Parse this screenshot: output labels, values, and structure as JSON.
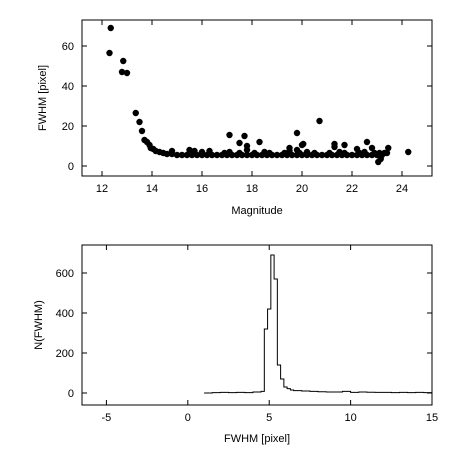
{
  "chart_data": [
    {
      "type": "scatter",
      "title": "",
      "xlabel": "Magnitude",
      "ylabel": "FWHM [pixel]",
      "xlim": [
        11.2,
        25.2
      ],
      "ylim": [
        -5,
        73
      ],
      "xticks": [
        12,
        14,
        16,
        18,
        20,
        22,
        24
      ],
      "xtick_labels": [
        "12",
        "14",
        "16",
        "18",
        "20",
        "22",
        "24"
      ],
      "yticks": [
        0,
        20,
        40,
        60
      ],
      "ytick_labels": [
        "0",
        "20",
        "40",
        "60"
      ],
      "grid": false,
      "marker": "filled-circle",
      "points": [
        [
          12.35,
          69
        ],
        [
          12.3,
          56.5
        ],
        [
          12.85,
          52.5
        ],
        [
          12.8,
          47
        ],
        [
          13.0,
          46.5
        ],
        [
          13.35,
          26.5
        ],
        [
          13.5,
          22
        ],
        [
          13.6,
          17.5
        ],
        [
          13.7,
          13
        ],
        [
          13.8,
          12
        ],
        [
          13.9,
          10.5
        ],
        [
          13.95,
          9
        ],
        [
          14.05,
          8.5
        ],
        [
          14.15,
          7.5
        ],
        [
          14.3,
          7
        ],
        [
          14.45,
          6.5
        ],
        [
          14.6,
          6
        ],
        [
          14.8,
          6
        ],
        [
          15.0,
          5.5
        ],
        [
          15.2,
          5.5
        ],
        [
          15.4,
          5.5
        ],
        [
          15.6,
          5.5
        ],
        [
          15.8,
          5.5
        ],
        [
          16.0,
          5.5
        ],
        [
          16.2,
          5.5
        ],
        [
          16.4,
          5.5
        ],
        [
          16.6,
          5.5
        ],
        [
          16.8,
          5.5
        ],
        [
          17.0,
          5.5
        ],
        [
          17.2,
          5.5
        ],
        [
          17.4,
          5.5
        ],
        [
          17.6,
          5.5
        ],
        [
          17.8,
          5.5
        ],
        [
          18.0,
          5.5
        ],
        [
          18.2,
          5.5
        ],
        [
          18.4,
          5.5
        ],
        [
          18.6,
          5.5
        ],
        [
          18.8,
          5.5
        ],
        [
          19.0,
          5.5
        ],
        [
          19.2,
          5.5
        ],
        [
          19.4,
          5.5
        ],
        [
          19.6,
          5.5
        ],
        [
          19.8,
          5.5
        ],
        [
          20.0,
          5.5
        ],
        [
          20.2,
          5.5
        ],
        [
          20.4,
          5.5
        ],
        [
          20.6,
          5.5
        ],
        [
          20.8,
          5.5
        ],
        [
          21.0,
          5.5
        ],
        [
          21.2,
          5.5
        ],
        [
          21.4,
          5.5
        ],
        [
          21.6,
          5.5
        ],
        [
          21.8,
          5.5
        ],
        [
          22.0,
          5.5
        ],
        [
          22.2,
          5.5
        ],
        [
          22.4,
          5.5
        ],
        [
          22.6,
          5.5
        ],
        [
          22.8,
          5.5
        ],
        [
          23.0,
          5.5
        ],
        [
          23.2,
          5.5
        ],
        [
          14.8,
          7.5
        ],
        [
          15.5,
          6.5
        ],
        [
          16.3,
          6.5
        ],
        [
          16.9,
          6.5
        ],
        [
          17.5,
          6.5
        ],
        [
          18.1,
          6.5
        ],
        [
          18.7,
          6.5
        ],
        [
          19.3,
          6.5
        ],
        [
          19.9,
          6.5
        ],
        [
          20.5,
          6.5
        ],
        [
          21.1,
          6.5
        ],
        [
          21.7,
          6.5
        ],
        [
          22.3,
          6.5
        ],
        [
          22.9,
          6.5
        ],
        [
          23.1,
          6.5
        ],
        [
          17.1,
          7
        ],
        [
          18.5,
          7
        ],
        [
          19.5,
          7.5
        ],
        [
          20.2,
          7
        ],
        [
          21.5,
          7
        ],
        [
          22.5,
          7
        ],
        [
          23.4,
          6.5
        ],
        [
          15.7,
          7.5
        ],
        [
          17.8,
          8
        ],
        [
          16.0,
          7
        ],
        [
          16.3,
          7.5
        ],
        [
          17.8,
          10
        ],
        [
          19.8,
          8
        ],
        [
          20.0,
          10.5
        ],
        [
          22.8,
          9
        ],
        [
          21.3,
          9.5
        ],
        [
          15.5,
          8
        ],
        [
          17.1,
          15.5
        ],
        [
          17.5,
          11.5
        ],
        [
          17.7,
          15
        ],
        [
          18.3,
          12
        ],
        [
          19.5,
          9
        ],
        [
          19.8,
          16.5
        ],
        [
          20.05,
          11
        ],
        [
          20.7,
          22.5
        ],
        [
          21.3,
          11
        ],
        [
          21.7,
          10.5
        ],
        [
          22.2,
          8.5
        ],
        [
          22.6,
          12
        ],
        [
          23.45,
          9
        ],
        [
          23.3,
          6.5
        ],
        [
          23.15,
          3.5
        ],
        [
          23.05,
          2
        ],
        [
          24.25,
          7
        ]
      ]
    },
    {
      "type": "line",
      "title": "",
      "xlabel": "FWHM [pixel]",
      "ylabel": "N(FWHM)",
      "xlim": [
        -6.5,
        15
      ],
      "ylim": [
        -60,
        740
      ],
      "xticks": [
        -5,
        0,
        5,
        10,
        15
      ],
      "xtick_labels": [
        "-5",
        "0",
        "5",
        "10",
        "15"
      ],
      "yticks": [
        0,
        200,
        400,
        600
      ],
      "ytick_labels": [
        "0",
        "200",
        "400",
        "600"
      ],
      "grid": false,
      "style": "histogram-step",
      "x": [
        1.0,
        1.5,
        2.0,
        2.5,
        3.0,
        3.5,
        4.0,
        4.5,
        4.7,
        4.9,
        5.1,
        5.3,
        5.5,
        5.7,
        5.9,
        6.1,
        6.3,
        6.5,
        7.0,
        7.5,
        8.0,
        8.5,
        9.0,
        9.5,
        10.0,
        10.5,
        11.0,
        11.5,
        12.0,
        12.5,
        13.0,
        13.5,
        14.0,
        14.5,
        15.0
      ],
      "y": [
        0,
        2,
        3,
        2,
        3,
        2,
        5,
        8,
        320,
        420,
        690,
        570,
        140,
        70,
        30,
        22,
        15,
        12,
        10,
        8,
        6,
        5,
        5,
        8,
        3,
        5,
        4,
        3,
        3,
        2,
        3,
        2,
        3,
        2,
        2
      ]
    }
  ]
}
